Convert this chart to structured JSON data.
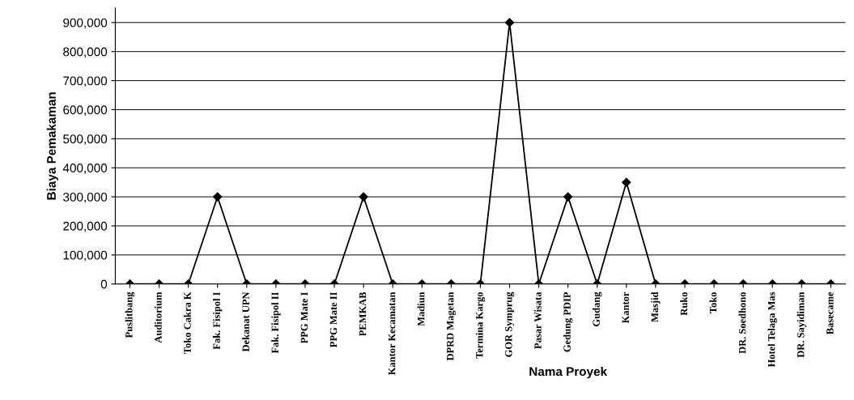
{
  "chart_data": {
    "type": "line",
    "xlabel": "Nama Proyek",
    "ylabel": "Biaya Pemakaman",
    "categories": [
      "Puslitbang",
      "Auditorium",
      "Toko Cakra K",
      "Fak. Fisipol I",
      "Dekanat UPN",
      "Fak. Fisipol II",
      "PPG Mate I",
      "PPG Mate II",
      "PEMKAB",
      "Kantor Kecamatan",
      "Madiun",
      "DPRD Magetan",
      "Termina Kargo",
      "GOR Symprug",
      "Pasar Wisata",
      "Gedung PDIP",
      "Gudang",
      "Kantor",
      "Masjid",
      "Ruko",
      "Toko",
      "DR. Soedhono",
      "Hotel Telaga Mas",
      "DR. Sayidiman",
      "Basecame"
    ],
    "series": [
      {
        "color": "#000000",
        "values": [
          0,
          0,
          0,
          300000,
          0,
          0,
          0,
          0,
          300000,
          0,
          0,
          0,
          0,
          900000,
          0,
          300000,
          0,
          350000,
          0,
          0,
          0,
          0,
          0,
          0,
          0
        ]
      }
    ],
    "ylim": [
      0,
      950000
    ],
    "yticks": [
      {
        "value": 0,
        "label": "0"
      },
      {
        "value": 100000,
        "label": "100,000"
      },
      {
        "value": 200000,
        "label": "200,000"
      },
      {
        "value": 300000,
        "label": "300,000"
      },
      {
        "value": 400000,
        "label": "400,000"
      },
      {
        "value": 500000,
        "label": "500,000"
      },
      {
        "value": 600000,
        "label": "600,000"
      },
      {
        "value": 700000,
        "label": "700,000"
      },
      {
        "value": 800000,
        "label": "800,000"
      },
      {
        "value": 900000,
        "label": "900,000"
      }
    ],
    "grid": "y",
    "marker": "diamond",
    "line_style": "solid"
  }
}
